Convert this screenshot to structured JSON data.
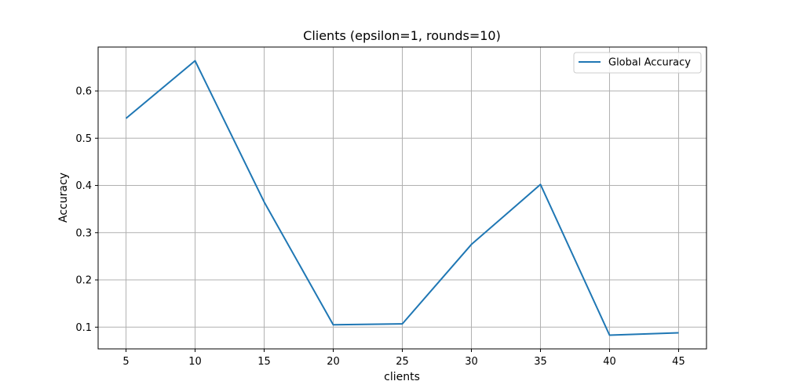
{
  "chart_data": {
    "type": "line",
    "title": "Clients (epsilon=1, rounds=10)",
    "xlabel": "clients",
    "ylabel": "Accuracy",
    "x": [
      5,
      10,
      15,
      20,
      25,
      30,
      35,
      40,
      45
    ],
    "series": [
      {
        "name": "Global Accuracy",
        "color": "#1f77b4",
        "values": [
          0.542,
          0.664,
          0.365,
          0.105,
          0.107,
          0.275,
          0.402,
          0.083,
          0.088
        ]
      }
    ],
    "xlim": [
      2.98,
      47.02
    ],
    "ylim": [
      0.054,
      0.693
    ],
    "xticks": [
      "5",
      "10",
      "15",
      "20",
      "25",
      "30",
      "35",
      "40",
      "45"
    ],
    "yticks": [
      "0.1",
      "0.2",
      "0.3",
      "0.4",
      "0.5",
      "0.6"
    ],
    "grid": true,
    "legend_position": "top-right"
  }
}
